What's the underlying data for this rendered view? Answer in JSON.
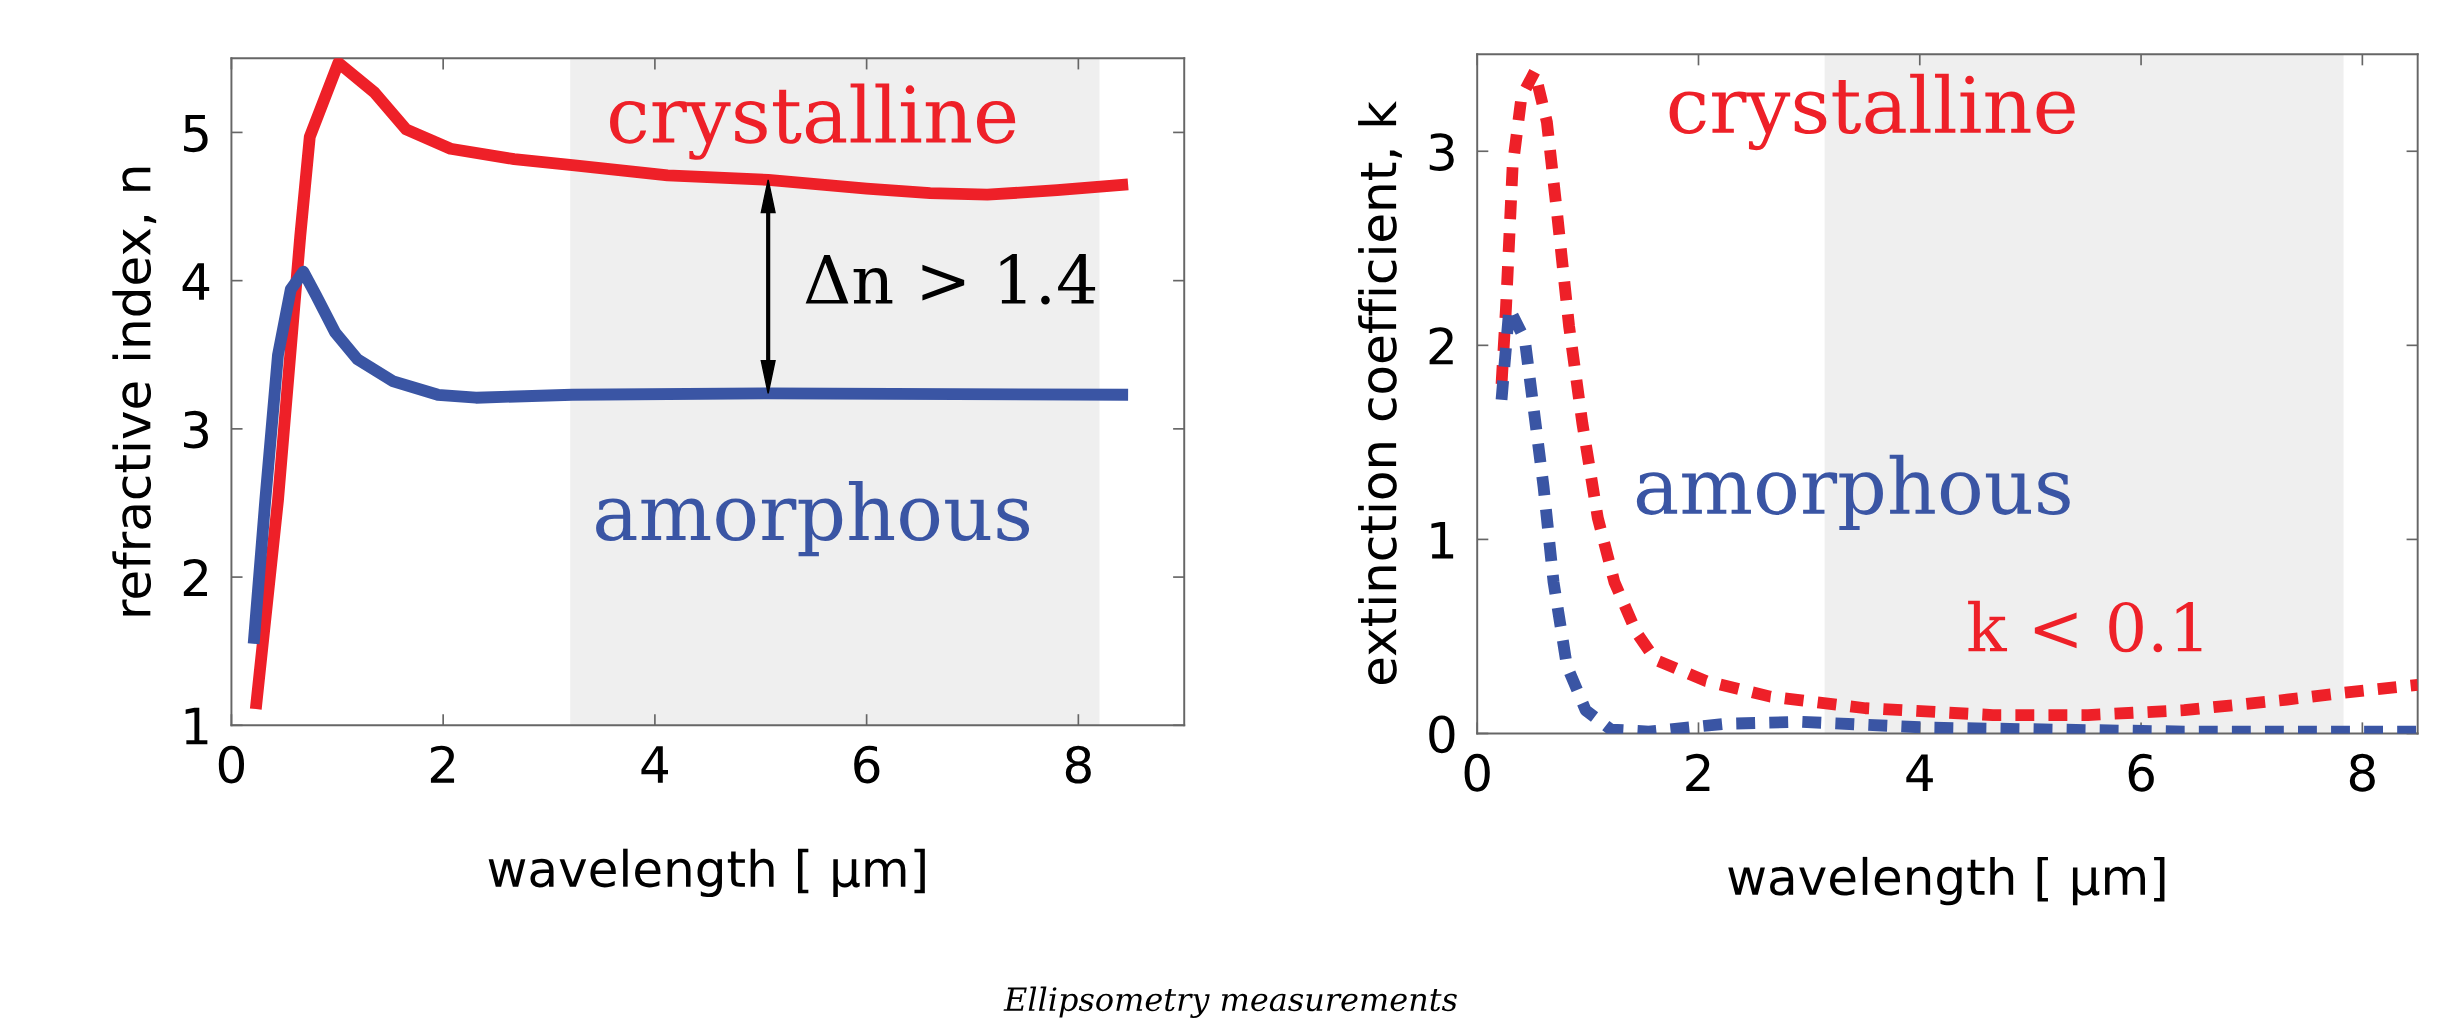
{
  "chart_data": [
    {
      "type": "line",
      "xlabel": "wavelength [ μm]",
      "ylabel": "refractive index, n",
      "xlim": [
        0,
        9
      ],
      "ylim": [
        1,
        5.5
      ],
      "xticks": [
        0,
        2,
        4,
        6,
        8
      ],
      "yticks": [
        1,
        2,
        3,
        4,
        5
      ],
      "grid": false,
      "legend": false,
      "line_style": "solid",
      "bands": [
        {
          "axis": "x",
          "from": 3.2,
          "to": 8.2,
          "color": "#efefef"
        }
      ],
      "series": [
        {
          "name": "crystalline",
          "color": "#ee2028",
          "x": [
            0.23,
            0.44,
            0.65,
            0.74,
            1.01,
            1.35,
            1.65,
            2.07,
            2.67,
            3.22,
            4.12,
            5.07,
            6.0,
            6.6,
            7.14,
            7.8,
            8.47
          ],
          "values": [
            1.11,
            2.52,
            4.3,
            4.97,
            5.47,
            5.27,
            5.02,
            4.89,
            4.82,
            4.78,
            4.71,
            4.68,
            4.62,
            4.59,
            4.58,
            4.61,
            4.65
          ]
        },
        {
          "name": "amorphous",
          "color": "#3a55a4",
          "x": [
            0.21,
            0.32,
            0.44,
            0.56,
            0.68,
            0.8,
            0.98,
            1.19,
            1.53,
            1.95,
            2.31,
            3.22,
            5.07,
            8.47
          ],
          "values": [
            1.55,
            2.52,
            3.5,
            3.94,
            4.06,
            3.9,
            3.65,
            3.47,
            3.32,
            3.23,
            3.21,
            3.23,
            3.24,
            3.23
          ]
        }
      ],
      "annotations": [
        "Δn > 1.4"
      ]
    },
    {
      "type": "line",
      "xlabel": "wavelength [ μm]",
      "ylabel": "extinction coefficient, k",
      "xlim": [
        0,
        8.5
      ],
      "ylim": [
        0,
        3.5
      ],
      "xticks": [
        0,
        2,
        4,
        6,
        8
      ],
      "yticks": [
        0,
        1,
        2,
        3
      ],
      "grid": false,
      "legend": false,
      "line_style": "dashed",
      "bands": [
        {
          "axis": "x",
          "from": 3.14,
          "to": 7.83,
          "color": "#efefef"
        }
      ],
      "series": [
        {
          "name": "crystalline",
          "color": "#ee2028",
          "x": [
            0.22,
            0.26,
            0.32,
            0.4,
            0.52,
            0.63,
            0.72,
            0.83,
            0.95,
            1.09,
            1.24,
            1.44,
            1.61,
            2.07,
            2.65,
            3.51,
            4.66,
            5.52,
            6.39,
            7.25,
            7.83,
            8.5
          ],
          "values": [
            1.8,
            2.19,
            2.92,
            3.28,
            3.41,
            3.15,
            2.69,
            2.1,
            1.6,
            1.11,
            0.78,
            0.52,
            0.38,
            0.27,
            0.19,
            0.13,
            0.095,
            0.095,
            0.12,
            0.17,
            0.21,
            0.25
          ]
        },
        {
          "name": "amorphous",
          "color": "#3a55a4",
          "x": [
            0.22,
            0.29,
            0.43,
            0.52,
            0.6,
            0.69,
            0.81,
            0.98,
            1.21,
            1.55,
            2.24,
            2.93,
            4.09,
            5.24,
            6.39,
            8.5
          ],
          "values": [
            1.72,
            2.19,
            2.03,
            1.63,
            1.27,
            0.78,
            0.35,
            0.12,
            0.02,
            0.01,
            0.05,
            0.06,
            0.03,
            0.02,
            0.01,
            0.01
          ]
        }
      ],
      "annotations": [
        "k < 0.1",
        "Ellipsometry measurements"
      ]
    }
  ]
}
